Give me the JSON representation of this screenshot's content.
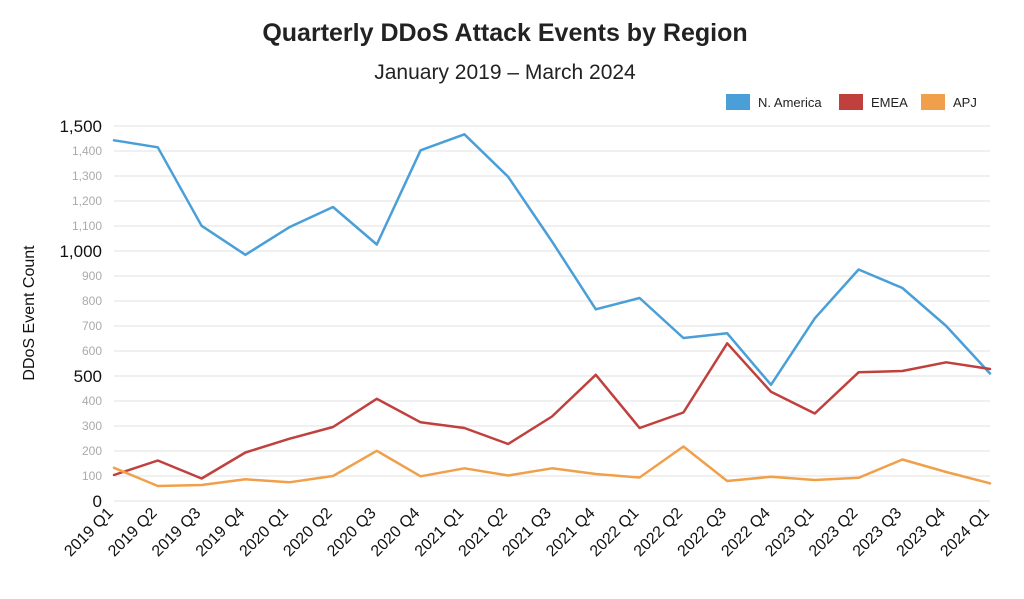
{
  "chart_data": {
    "type": "line",
    "title": "Quarterly DDoS Attack Events by Region",
    "subtitle": "January 2019 – March 2024",
    "xlabel": "",
    "ylabel": "DDoS Event Count",
    "ylim": [
      0,
      1500
    ],
    "yticks": [
      0,
      100,
      200,
      300,
      400,
      500,
      600,
      700,
      800,
      900,
      1000,
      1100,
      1200,
      1300,
      1400,
      1500
    ],
    "ytick_labels": [
      "0",
      "100",
      "200",
      "300",
      "400",
      "500",
      "600",
      "700",
      "800",
      "900",
      "1,000",
      "1,100",
      "1,200",
      "1,300",
      "1,400",
      "1,500"
    ],
    "major_ticks": [
      0,
      500,
      1000,
      1500
    ],
    "grid": true,
    "legend_position": "top-right",
    "categories": [
      "2019 Q1",
      "2019 Q2",
      "2019 Q3",
      "2019 Q4",
      "2020 Q1",
      "2020 Q2",
      "2020 Q3",
      "2020 Q4",
      "2021 Q1",
      "2021 Q2",
      "2021 Q3",
      "2021 Q4",
      "2022 Q1",
      "2022 Q2",
      "2022 Q3",
      "2022 Q4",
      "2023 Q1",
      "2023 Q2",
      "2023 Q3",
      "2023 Q4",
      "2024 Q1"
    ],
    "series": [
      {
        "name": "N. America",
        "color": "#4a9fd8",
        "values": [
          1443,
          1415,
          1101,
          985,
          1095,
          1176,
          1026,
          1403,
          1467,
          1297,
          1038,
          767,
          812,
          652,
          671,
          465,
          731,
          926,
          852,
          700,
          510
        ]
      },
      {
        "name": "EMEA",
        "color": "#c0403d",
        "values": [
          104,
          162,
          90,
          194,
          249,
          296,
          409,
          315,
          292,
          228,
          338,
          505,
          292,
          354,
          631,
          437,
          350,
          515,
          520,
          555,
          528
        ]
      },
      {
        "name": "APJ",
        "color": "#f0a04b",
        "values": [
          133,
          60,
          64,
          87,
          75,
          100,
          201,
          99,
          131,
          102,
          131,
          108,
          94,
          218,
          80,
          97,
          84,
          93,
          166,
          116,
          71
        ]
      }
    ]
  }
}
